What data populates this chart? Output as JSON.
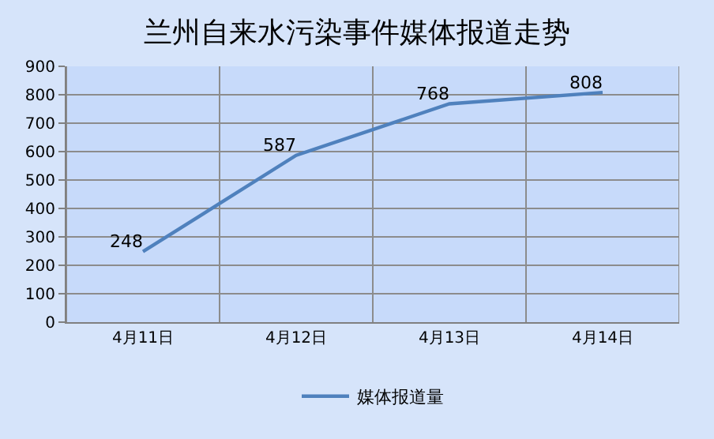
{
  "chart_data": {
    "type": "line",
    "title": "兰州自来水污染事件媒体报道走势",
    "categories": [
      "4月11日",
      "4月12日",
      "4月13日",
      "4月14日"
    ],
    "series": [
      {
        "name": "媒体报道量",
        "color": "#4f81bd",
        "values": [
          248,
          587,
          768,
          808
        ]
      }
    ],
    "ylim": [
      0,
      900
    ],
    "yticks": [
      0,
      100,
      200,
      300,
      400,
      500,
      600,
      700,
      800,
      900
    ],
    "grid": true,
    "legend": "bottom",
    "data_labels": true,
    "marker": "none",
    "line_style": "solid"
  }
}
